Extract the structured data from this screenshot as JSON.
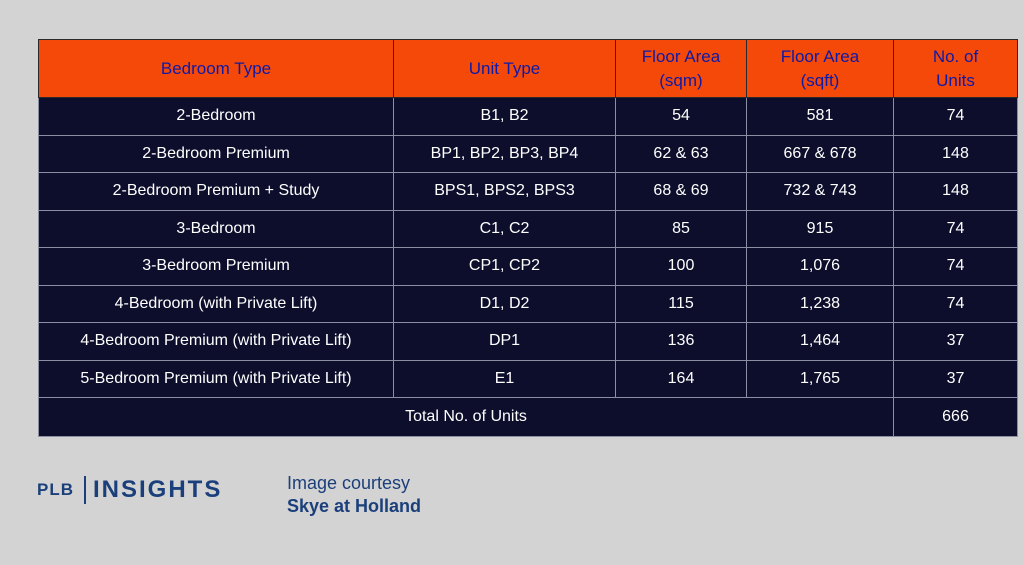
{
  "table": {
    "headers": [
      "Bedroom Type",
      "Unit Type",
      "Floor Area\n(sqm)",
      "Floor Area\n(sqft)",
      "No. of\nUnits"
    ],
    "header_lines": [
      [
        "Bedroom Type"
      ],
      [
        "Unit Type"
      ],
      [
        "Floor Area",
        "(sqm)"
      ],
      [
        "Floor Area",
        "(sqft)"
      ],
      [
        "No. of",
        "Units"
      ]
    ],
    "rows": [
      [
        "2-Bedroom",
        "B1, B2",
        "54",
        "581",
        "74"
      ],
      [
        "2-Bedroom Premium",
        "BP1, BP2, BP3, BP4",
        "62 & 63",
        "667 & 678",
        "148"
      ],
      [
        "2-Bedroom Premium + Study",
        "BPS1, BPS2, BPS3",
        "68 & 69",
        "732 & 743",
        "148"
      ],
      [
        "3-Bedroom",
        "C1, C2",
        "85",
        "915",
        "74"
      ],
      [
        "3-Bedroom Premium",
        "CP1, CP2",
        "100",
        "1,076",
        "74"
      ],
      [
        "4-Bedroom (with Private Lift)",
        "D1, D2",
        "115",
        "1,238",
        "74"
      ],
      [
        "4-Bedroom Premium (with Private Lift)",
        "DP1",
        "136",
        "1,464",
        "37"
      ],
      [
        "5-Bedroom Premium (with Private Lift)",
        "E1",
        "164",
        "1,765",
        "37"
      ]
    ],
    "total_label": "Total No. of Units",
    "total_value": "666"
  },
  "footer": {
    "logo_left": "PLB",
    "logo_right": "INSIGHTS",
    "courtesy_line1": "Image courtesy",
    "courtesy_line2": "Skye at Holland"
  },
  "colors": {
    "header_bg": "#f5490a",
    "header_text": "#0d1aa8",
    "row_bg": "#0d0e2c",
    "page_bg": "#d3d3d3",
    "brand": "#1b3f7a"
  }
}
